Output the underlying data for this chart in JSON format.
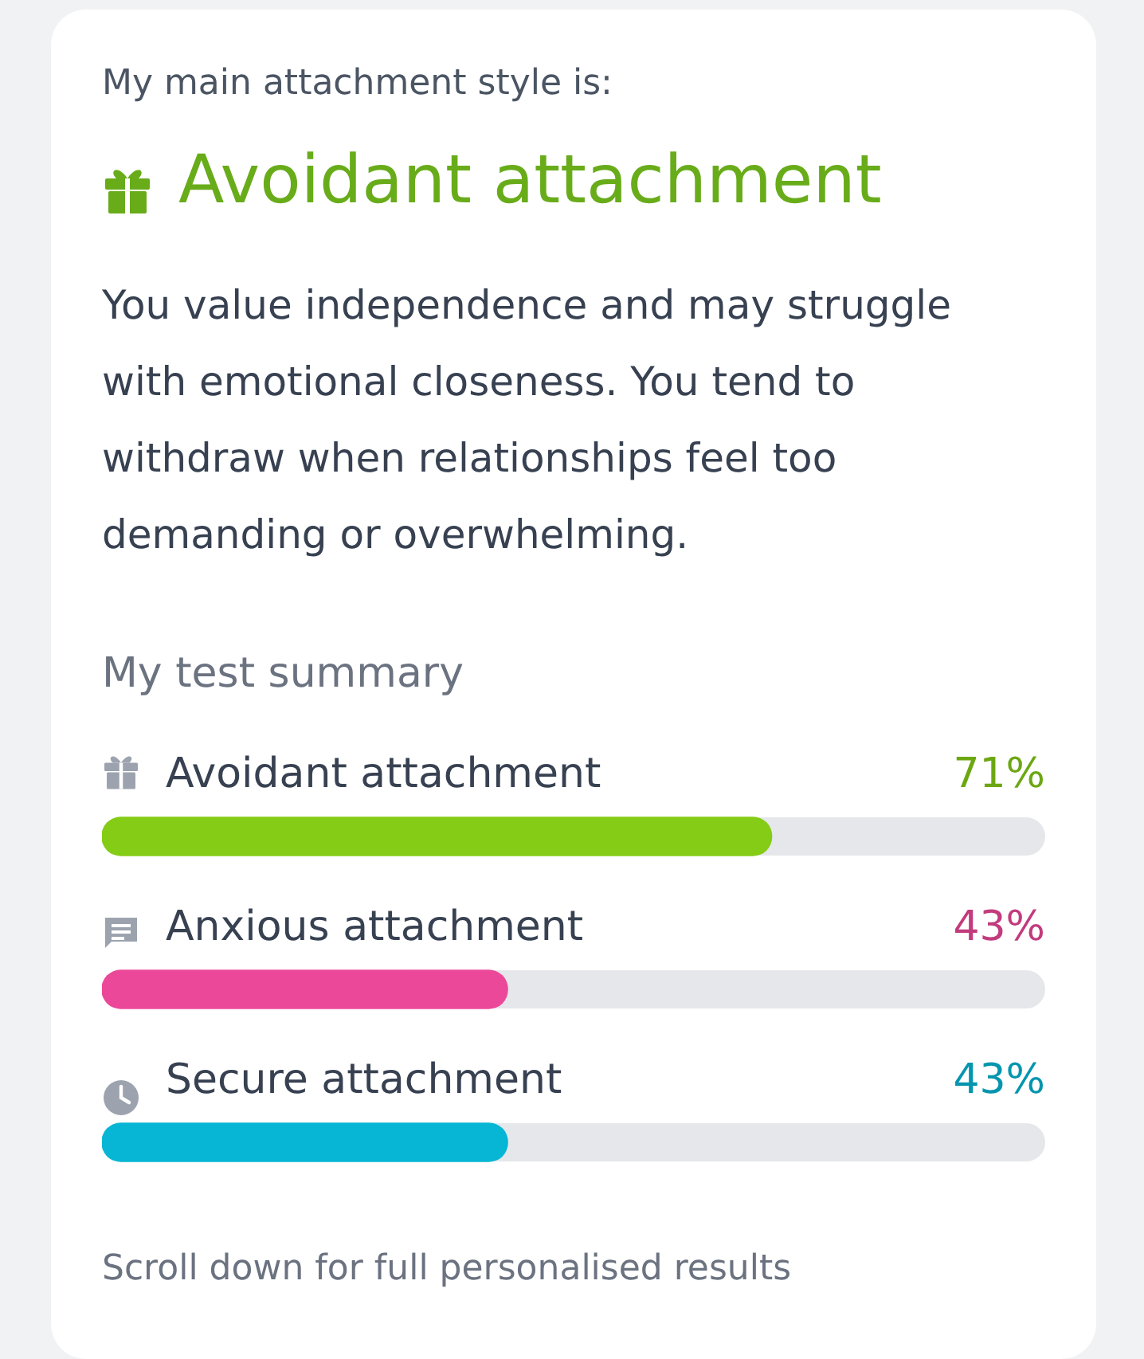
{
  "chart_data": {
    "type": "bar",
    "orientation": "horizontal",
    "title": "Avoidant attachment",
    "subtitle": "You value independence and may struggle with emotional closeness. You tend to withdraw when relationships feel too demanding or overwhelming.",
    "annotations": [
      "My main attachment style is:",
      "My test summary",
      "Scroll down for full personalised results"
    ],
    "categories": [
      "Avoidant attachment",
      "Anxious attachment",
      "Secure attachment"
    ],
    "values": [
      71,
      43,
      43
    ],
    "colors": [
      "#84cc16",
      "#ec4899",
      "#06b6d4"
    ],
    "value_labels": [
      "71%",
      "43%",
      "43%"
    ],
    "xlim": [
      0,
      100
    ],
    "tick_labels": false,
    "legend": false
  }
}
